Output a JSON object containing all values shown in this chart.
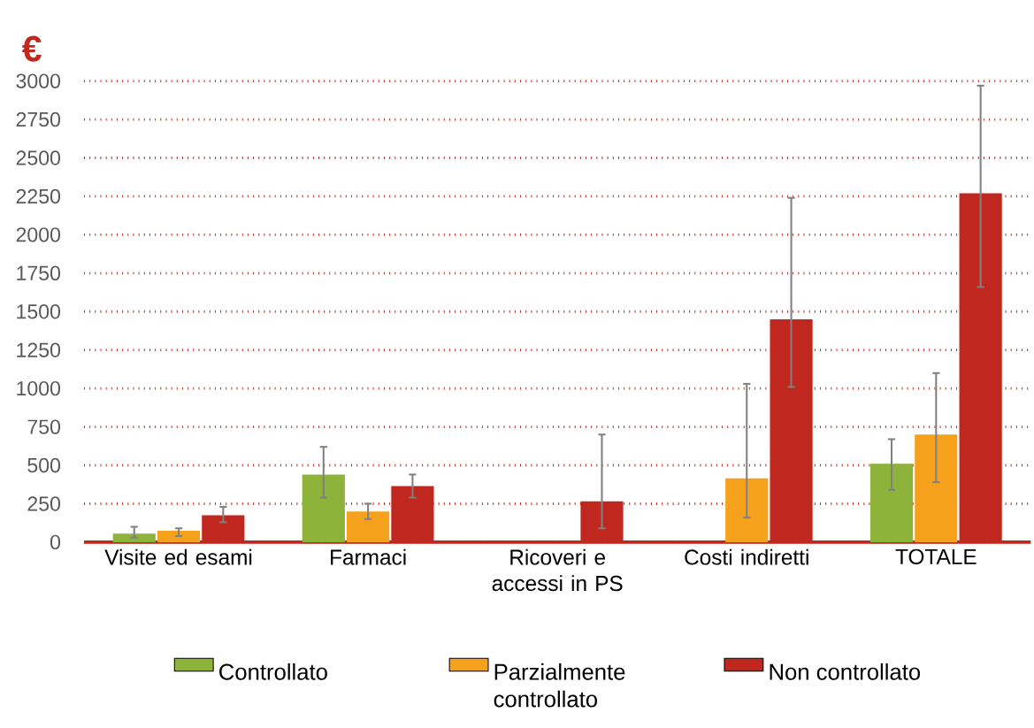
{
  "chart_data": {
    "type": "bar",
    "ylabel": "€",
    "categories": [
      "Visite ed esami",
      "Farmaci",
      "Ricoveri e accessi in PS",
      "Costi indiretti",
      "TOTALE"
    ],
    "series": [
      {
        "name": "Controllato",
        "color": "#8db33a",
        "values": [
          55,
          440,
          null,
          null,
          510
        ],
        "errors": [
          [
            30,
            100
          ],
          [
            290,
            620
          ],
          null,
          null,
          [
            340,
            670
          ]
        ]
      },
      {
        "name": "Parzialmente controllato",
        "color": "#f5a11c",
        "values": [
          75,
          200,
          null,
          415,
          700
        ],
        "errors": [
          [
            40,
            90
          ],
          [
            150,
            250
          ],
          null,
          [
            160,
            1030
          ],
          [
            390,
            1100
          ]
        ]
      },
      {
        "name": "Non controllato",
        "color": "#c0281f",
        "values": [
          175,
          365,
          265,
          1450,
          2270
        ],
        "errors": [
          [
            130,
            230
          ],
          [
            290,
            440
          ],
          [
            90,
            700
          ],
          [
            1010,
            2240
          ],
          [
            1660,
            2970
          ]
        ]
      }
    ],
    "ylim": [
      0,
      3000
    ],
    "yticks": [
      0,
      250,
      500,
      750,
      1000,
      1250,
      1500,
      1750,
      2000,
      2250,
      2500,
      2750,
      3000
    ],
    "grid": "y",
    "legend": "bottom"
  }
}
